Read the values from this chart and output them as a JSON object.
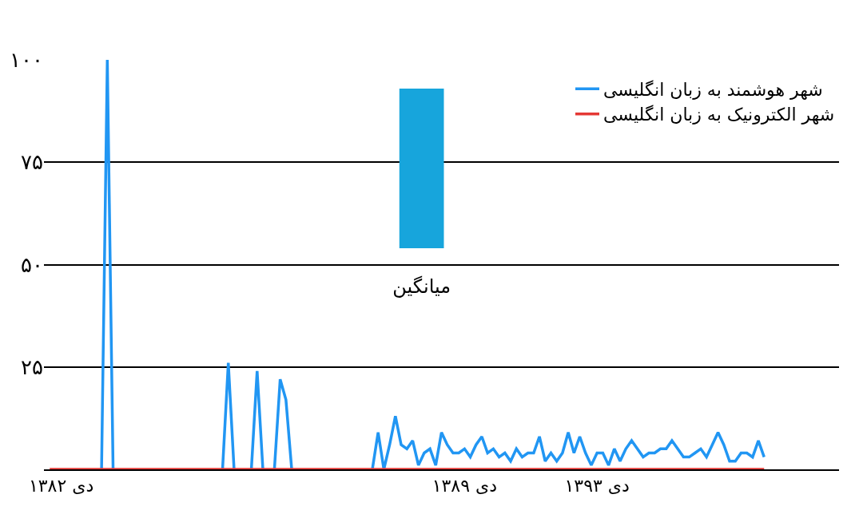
{
  "chart_data": [
    {
      "type": "line",
      "categories": [
        null,
        null,
        "دی ۱۳۸۲",
        null,
        null,
        null,
        null,
        null,
        null,
        null,
        null,
        null,
        null,
        null,
        null,
        null,
        null,
        null,
        null,
        null,
        null,
        null,
        null,
        null,
        null,
        null,
        null,
        null,
        null,
        null,
        null,
        null,
        null,
        null,
        null,
        null,
        null,
        null,
        null,
        null,
        null,
        null,
        null,
        null,
        null,
        null,
        null,
        null,
        null,
        null,
        null,
        null,
        null,
        null,
        null,
        null,
        null,
        null,
        null,
        null,
        null,
        null,
        null,
        null,
        null,
        null,
        null,
        null,
        null,
        null,
        null,
        null,
        "دی ۱۳۸۹",
        null,
        null,
        null,
        null,
        null,
        null,
        null,
        null,
        null,
        null,
        null,
        null,
        null,
        null,
        null,
        null,
        null,
        null,
        null,
        null,
        null,
        null,
        "دی ۱۳۹۳",
        null,
        null,
        null,
        null,
        null,
        null,
        null,
        null,
        null,
        null,
        null,
        null,
        null,
        null,
        null,
        null,
        null,
        null,
        null,
        null,
        null,
        null,
        null,
        null,
        null,
        null,
        null,
        null,
        null
      ],
      "series": [
        {
          "name": "شهر هوشمند به زبان انگلیسی",
          "color": "#2196f3",
          "values": [
            null,
            null,
            null,
            null,
            null,
            null,
            null,
            null,
            null,
            0,
            100,
            0,
            null,
            null,
            null,
            null,
            null,
            null,
            null,
            null,
            null,
            null,
            null,
            null,
            null,
            null,
            null,
            null,
            null,
            null,
            0,
            26,
            0,
            null,
            null,
            0,
            24,
            0,
            null,
            0,
            22,
            17,
            0,
            null,
            null,
            null,
            null,
            null,
            null,
            null,
            null,
            null,
            null,
            null,
            null,
            null,
            0,
            9,
            0,
            6,
            13,
            6,
            5,
            7,
            1,
            4,
            5,
            1,
            9,
            6,
            4,
            4,
            5,
            3,
            6,
            8,
            4,
            5,
            3,
            4,
            2,
            5,
            3,
            4,
            4,
            8,
            2,
            4,
            2,
            4,
            9,
            4,
            8,
            4,
            1,
            4,
            4,
            1,
            5,
            2,
            5,
            7,
            5,
            3,
            4,
            4,
            5,
            5,
            7,
            5,
            3,
            3,
            4,
            5,
            3,
            6,
            9,
            6,
            2,
            2,
            4,
            4,
            3,
            7,
            3
          ]
        },
        {
          "name": "شهر الکترونیک به زبان انگلیسی",
          "color": "#e53935",
          "values": [
            0,
            0,
            0,
            0,
            0,
            0,
            0,
            0,
            0,
            0,
            0,
            0,
            0,
            0,
            0,
            0,
            0,
            0,
            0,
            0,
            0,
            0,
            0,
            0,
            0,
            0,
            0,
            0,
            0,
            0,
            0,
            0,
            0,
            0,
            0,
            0,
            0,
            0,
            0,
            0,
            0,
            0,
            0,
            0,
            0,
            0,
            0,
            0,
            0,
            0,
            0,
            0,
            0,
            0,
            0,
            0,
            0,
            0,
            0,
            0,
            0,
            0,
            0,
            0,
            0,
            0,
            0,
            0,
            0,
            0,
            0,
            0,
            0,
            0,
            0,
            0,
            0,
            0,
            0,
            0,
            0,
            0,
            0,
            0,
            0,
            0,
            0,
            0,
            0,
            0,
            0,
            0,
            0,
            0,
            0,
            0,
            0,
            0,
            0,
            0,
            0,
            0,
            0,
            0,
            0,
            0,
            0,
            0,
            0,
            0,
            0,
            0,
            0,
            0,
            0,
            0,
            0,
            0,
            0,
            0,
            0,
            0,
            0,
            0,
            0
          ]
        }
      ],
      "ylim": [
        0,
        100
      ],
      "yticks": [
        {
          "value": 25,
          "label": "۲۵"
        },
        {
          "value": 50,
          "label": "۵۰"
        },
        {
          "value": 75,
          "label": "۷۵"
        },
        {
          "value": 100,
          "label": "۱۰۰"
        }
      ],
      "grid": "y",
      "legend": "top right",
      "marker": "none",
      "line_style": "solid"
    },
    {
      "type": "bar",
      "categories": [
        "میانگین"
      ],
      "values": [
        39
      ],
      "base": [
        54
      ],
      "colors": [
        "#17a5dc"
      ],
      "ylim": [
        0,
        100
      ],
      "tick_labels": "x",
      "grid": "y"
    }
  ]
}
